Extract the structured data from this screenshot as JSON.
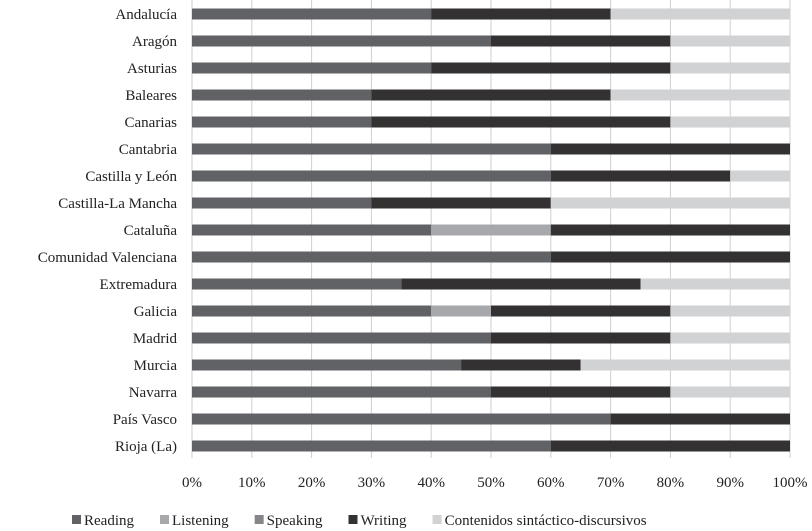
{
  "chart_data": {
    "type": "bar",
    "orientation": "horizontal",
    "stacked": true,
    "percent": true,
    "categories": [
      "Andalucía",
      "Aragón",
      "Asturias",
      "Baleares",
      "Canarias",
      "Cantabria",
      "Castilla y León",
      "Castilla-La Mancha",
      "Cataluña",
      "Comunidad Valenciana",
      "Extremadura",
      "Galicia",
      "Madrid",
      "Murcia",
      "Navarra",
      "País Vasco",
      "Rioja (La)"
    ],
    "series": [
      {
        "name": "Reading",
        "color": "#616265",
        "values": [
          40,
          50,
          40,
          30,
          30,
          60,
          60,
          30,
          40,
          60,
          35,
          40,
          50,
          45,
          50,
          70,
          60
        ]
      },
      {
        "name": "Listening",
        "color": "#a7a8ab",
        "values": [
          0,
          0,
          0,
          0,
          0,
          0,
          0,
          0,
          20,
          0,
          0,
          10,
          0,
          0,
          0,
          0,
          0
        ]
      },
      {
        "name": "Speaking",
        "color": "#858689",
        "values": [
          0,
          0,
          0,
          0,
          0,
          0,
          0,
          0,
          0,
          0,
          0,
          0,
          0,
          0,
          0,
          0,
          0
        ]
      },
      {
        "name": "Writing",
        "color": "#333132",
        "values": [
          30,
          30,
          40,
          40,
          50,
          40,
          30,
          30,
          40,
          40,
          40,
          30,
          30,
          20,
          30,
          30,
          40
        ]
      },
      {
        "name": "Contenidos sintáctico-discursivos",
        "color": "#d1d2d4",
        "values": [
          30,
          20,
          20,
          30,
          20,
          0,
          10,
          40,
          0,
          0,
          25,
          20,
          20,
          35,
          20,
          0,
          0
        ]
      }
    ],
    "xlim": [
      0,
      100
    ],
    "xticks": [
      "0%",
      "10%",
      "20%",
      "30%",
      "40%",
      "50%",
      "60%",
      "70%",
      "80%",
      "90%",
      "100%"
    ],
    "grid": true,
    "legend": "bottom"
  }
}
